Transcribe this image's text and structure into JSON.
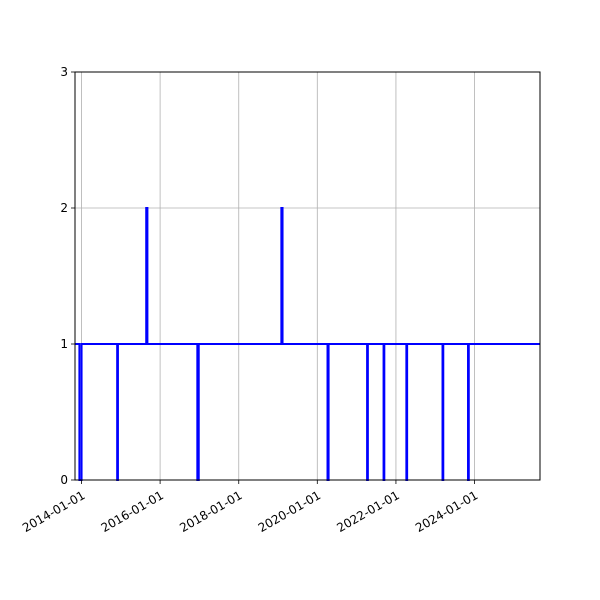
{
  "chart_data": {
    "type": "line",
    "step": true,
    "title": "",
    "xlabel": "",
    "ylabel": "",
    "grid": true,
    "line_color": "#0000ff",
    "xlim": [
      "2013-11-01",
      "2025-09-01"
    ],
    "ylim": [
      0,
      3
    ],
    "x_ticks": [
      "2014-01-01",
      "2016-01-01",
      "2018-01-01",
      "2020-01-01",
      "2022-01-01",
      "2024-01-01"
    ],
    "y_ticks": [
      0,
      1,
      2,
      3
    ],
    "series": [
      {
        "x": [
          "2013-11-01",
          "2013-12-12",
          "2013-12-12",
          "2014-01-01",
          "2014-01-01",
          "2014-11-28",
          "2014-11-28",
          "2014-12-05",
          "2014-12-05",
          "2015-08-25",
          "2015-08-25",
          "2015-09-05",
          "2015-09-05",
          "2016-12-12",
          "2016-12-12",
          "2016-12-25",
          "2016-12-25",
          "2019-02-01",
          "2019-02-01",
          "2019-02-12",
          "2019-02-12",
          "2020-04-05",
          "2020-04-05",
          "2020-04-15",
          "2020-04-15",
          "2021-04-08",
          "2021-04-08",
          "2021-04-15",
          "2021-04-15",
          "2021-09-08",
          "2021-09-08",
          "2021-09-15",
          "2021-09-15",
          "2022-04-08",
          "2022-04-08",
          "2022-04-15",
          "2022-04-15",
          "2023-03-10",
          "2023-03-10",
          "2023-03-17",
          "2023-03-17",
          "2023-11-02",
          "2023-11-02",
          "2023-11-09",
          "2023-11-09",
          "2025-09-01"
        ],
        "y": [
          1,
          1,
          0,
          0,
          1,
          1,
          0,
          0,
          1,
          1,
          2,
          2,
          1,
          1,
          0,
          0,
          1,
          1,
          2,
          2,
          1,
          1,
          0,
          0,
          1,
          1,
          0,
          0,
          1,
          1,
          0,
          0,
          1,
          1,
          0,
          0,
          1,
          1,
          0,
          0,
          1,
          1,
          0,
          0,
          1,
          1
        ]
      }
    ]
  }
}
